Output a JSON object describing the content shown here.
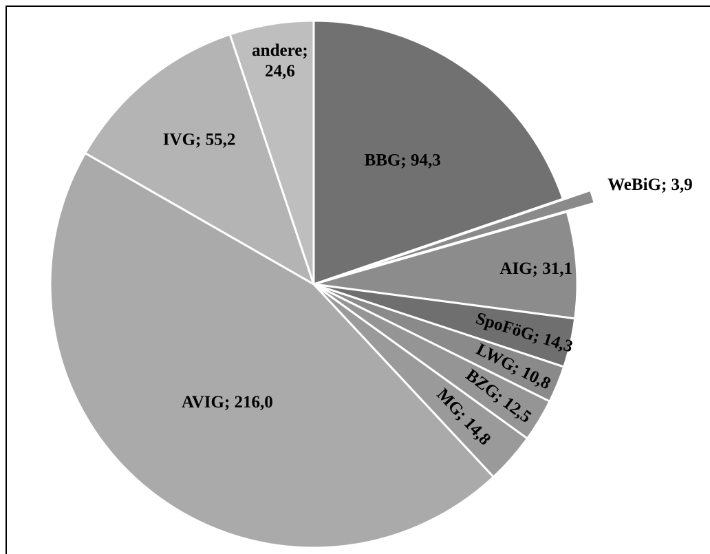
{
  "chart_data": {
    "type": "pie",
    "title": "",
    "start_angle_deg": 0,
    "direction": "clockwise",
    "slices": [
      {
        "label": "BBG; 94,3",
        "name": "BBG",
        "value": 94.3,
        "color": "#717171"
      },
      {
        "label": "WeBiG; 3,9",
        "name": "WeBiG",
        "value": 3.9,
        "color": "#8a8a8a",
        "exploded": true
      },
      {
        "label": "AIG; 31,1",
        "name": "AIG",
        "value": 31.1,
        "color": "#8c8c8c"
      },
      {
        "label": "SpoFöG; 14,3",
        "name": "SpoFöG",
        "value": 14.3,
        "color": "#6f6f6f"
      },
      {
        "label": "LWG; 10,8",
        "name": "LWG",
        "value": 10.8,
        "color": "#8a8a8a"
      },
      {
        "label": "BZG; 12,5",
        "name": "BZG",
        "value": 12.5,
        "color": "#959595"
      },
      {
        "label": "MG; 14,8",
        "name": "MG",
        "value": 14.8,
        "color": "#9a9a9a"
      },
      {
        "label": "AVIG; 216,0",
        "name": "AVIG",
        "value": 216.0,
        "color": "#aaaaaa"
      },
      {
        "label": "IVG; 55,2",
        "name": "IVG",
        "value": 55.2,
        "color": "#b4b4b4"
      },
      {
        "label": "andere; 24,6",
        "name": "andere",
        "value": 24.6,
        "color": "#bebebe",
        "label_lines": [
          "andere;",
          "24,6"
        ]
      }
    ]
  }
}
